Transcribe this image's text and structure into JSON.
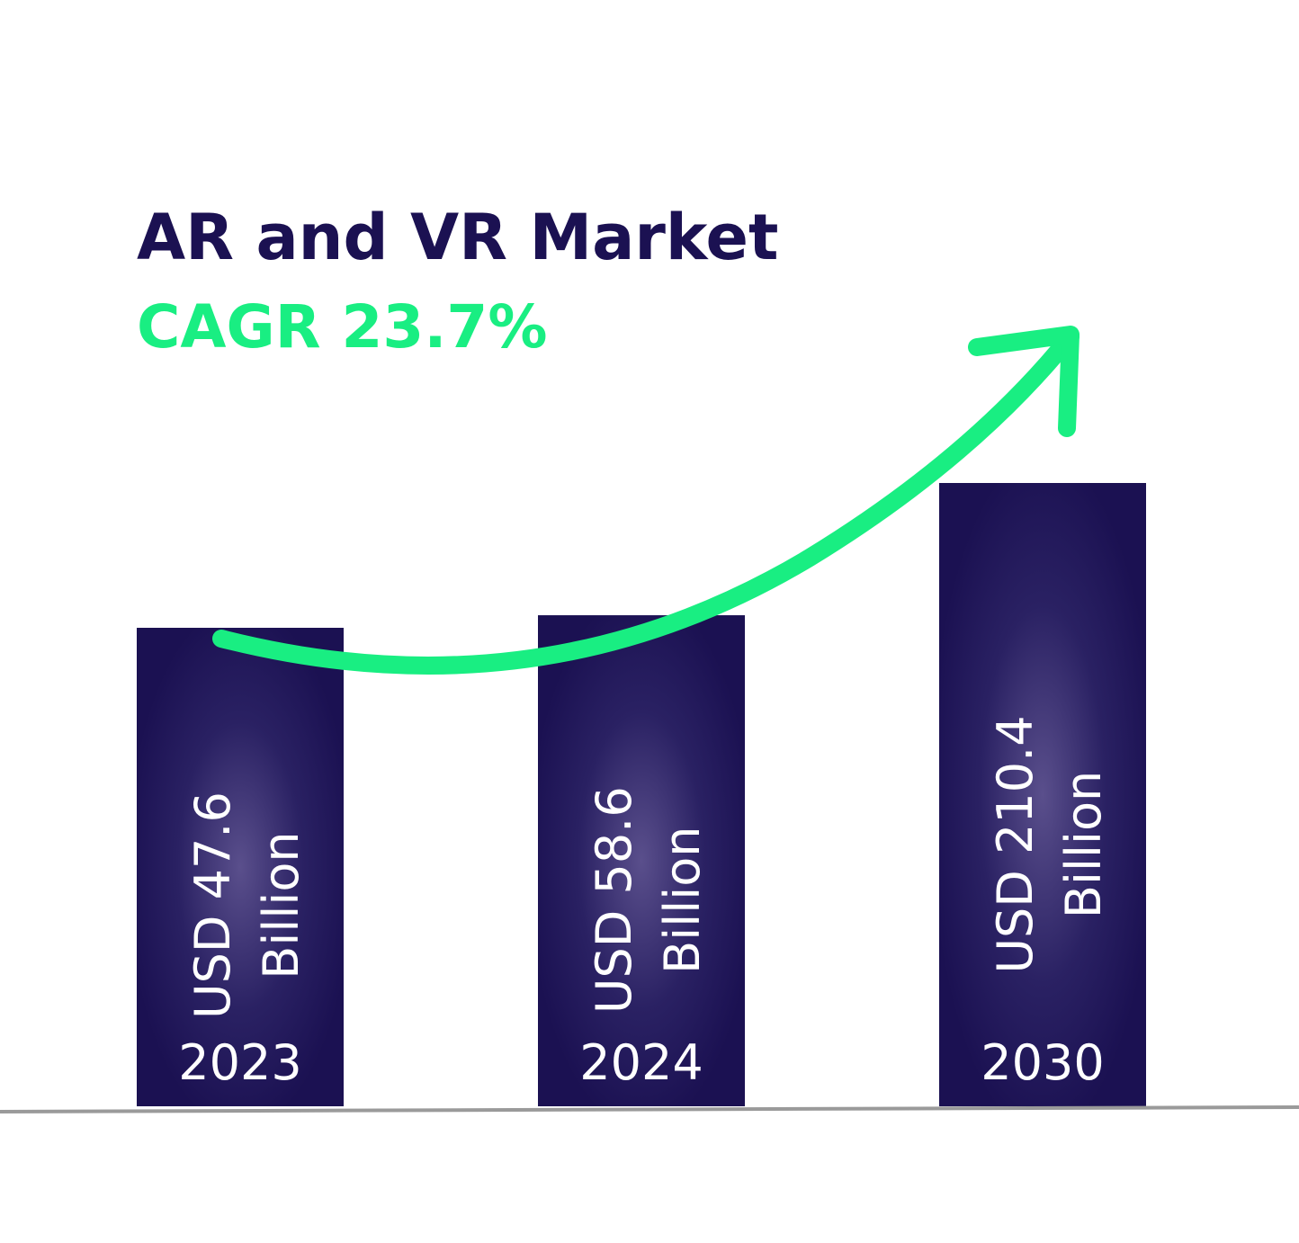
{
  "chart_data": {
    "type": "bar",
    "title": "AR and VR Market",
    "subtitle": "CAGR 23.7%",
    "categories": [
      "2023",
      "2024",
      "2030"
    ],
    "values": [
      47.6,
      58.6,
      210.4
    ],
    "value_labels": [
      [
        "USD 47.6",
        "Billion"
      ],
      [
        "USD 58.6",
        "Billion"
      ],
      [
        "USD 210.4",
        "Billion"
      ]
    ],
    "unit": "USD Billion",
    "trend_arrow": true,
    "grid": false,
    "legend": "none"
  },
  "colors": {
    "title": "#1b1152",
    "accent": "#19ee82",
    "bar": "#1b1152",
    "bar_glow": "#5a4f8c",
    "baseline": "#9a9a9a",
    "label": "#ffffff"
  }
}
